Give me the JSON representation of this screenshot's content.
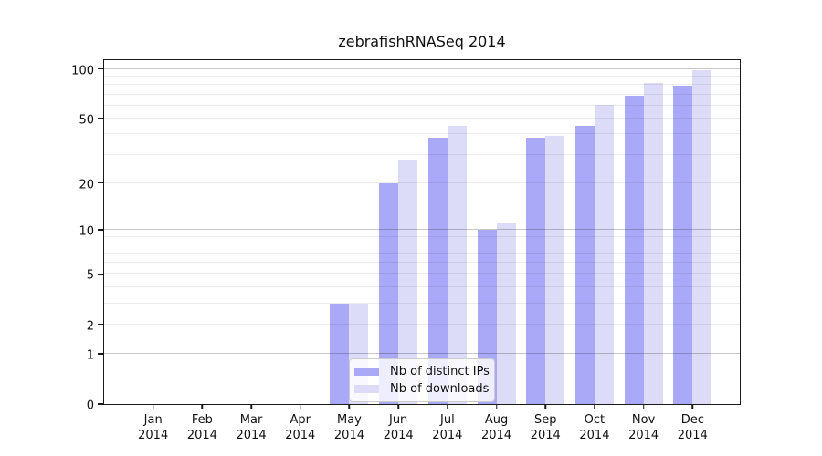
{
  "chart_data": {
    "type": "bar",
    "title": "zebrafishRNASeq 2014",
    "categories": [
      "Jan 2014",
      "Feb 2014",
      "Mar 2014",
      "Apr 2014",
      "May 2014",
      "Jun 2014",
      "Jul 2014",
      "Aug 2014",
      "Sep 2014",
      "Oct 2014",
      "Nov 2014",
      "Dec 2014"
    ],
    "series": [
      {
        "name": "Nb of distinct IPs",
        "color": "#a9a9f7",
        "values": [
          0,
          0,
          0,
          0,
          3,
          20,
          38,
          10,
          38,
          45,
          69,
          79
        ]
      },
      {
        "name": "Nb of downloads",
        "color": "#dcdcf9",
        "values": [
          0,
          0,
          0,
          0,
          3,
          28,
          45,
          11,
          39,
          61,
          82,
          98
        ]
      }
    ],
    "xlabel": "",
    "ylabel": "",
    "yscale": "log1p",
    "ylim": [
      0,
      116
    ],
    "y_ticks": [
      0,
      1,
      2,
      5,
      10,
      20,
      50,
      100
    ],
    "y_major_gridlines": [
      1,
      10,
      100
    ],
    "y_minor_gridlines": [
      2,
      3,
      4,
      5,
      6,
      7,
      8,
      9,
      20,
      30,
      40,
      50,
      60,
      70,
      80,
      90
    ],
    "grid": "on",
    "legend_position": "inside-bottom-center"
  },
  "legend": {
    "items": [
      {
        "label": "Nb of distinct IPs",
        "color": "#a9a9f7"
      },
      {
        "label": "Nb of downloads",
        "color": "#dcdcf9"
      }
    ]
  }
}
